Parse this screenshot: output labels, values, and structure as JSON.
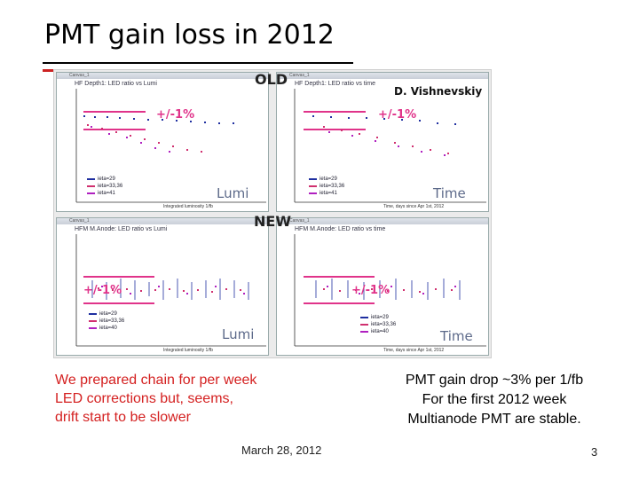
{
  "slide": {
    "title": "PMT gain loss in 2012",
    "tag_old": "OLD",
    "tag_new": "NEW",
    "author": "D. Vishnevskiy",
    "left_text": [
      "We prepared chain  for per week",
      "LED corrections but, seems,",
      "drift start to be slower"
    ],
    "right_text": [
      "PMT gain drop ~3% per 1/fb",
      "For the first 2012 week",
      "Multianode PMT are stable."
    ],
    "footer_date": "March 28, 2012",
    "page_number": "3"
  },
  "plots": {
    "top_left": {
      "window_title": "Canvas_1",
      "header": "HF Depth1: LED ratio vs Lumi",
      "band_label": "+/-1%",
      "axis_word": "Lumi",
      "xlabel": "Integrated luminosity 1/fb",
      "legend": [
        "ieta=29",
        "ieta=33,36",
        "ieta=41"
      ]
    },
    "top_right": {
      "window_title": "Canvas_1",
      "header": "HF Depth1: LED ratio vs time",
      "band_label": "+/-1%",
      "axis_word": "Time",
      "xlabel": "Time, days since Apr 1st, 2012",
      "legend": [
        "ieta=29",
        "ieta=33,36",
        "ieta=41"
      ]
    },
    "bottom_left": {
      "window_title": "Canvas_1",
      "header": "HFM M.Anode: LED ratio vs Lumi",
      "band_label": "+/-1%",
      "axis_word": "Lumi",
      "xlabel": "Integrated luminosity 1/fb",
      "legend": [
        "ieta=29",
        "ieta=33,36",
        "ieta=40"
      ]
    },
    "bottom_right": {
      "window_title": "Canvas_1",
      "header": "HFM M.Anode: LED ratio vs time",
      "band_label": "+/-1%",
      "axis_word": "Time",
      "xlabel": "Time, days since Apr 1st, 2012",
      "legend": [
        "ieta=29",
        "ieta=33,36",
        "ieta=40"
      ]
    }
  },
  "colors": {
    "title_rule": "#cc2222",
    "band": "#e0338a",
    "series_1": "#1f2fa0",
    "series_2": "#d0306f",
    "series_3": "#b020c0",
    "left_text": "#d42020"
  }
}
